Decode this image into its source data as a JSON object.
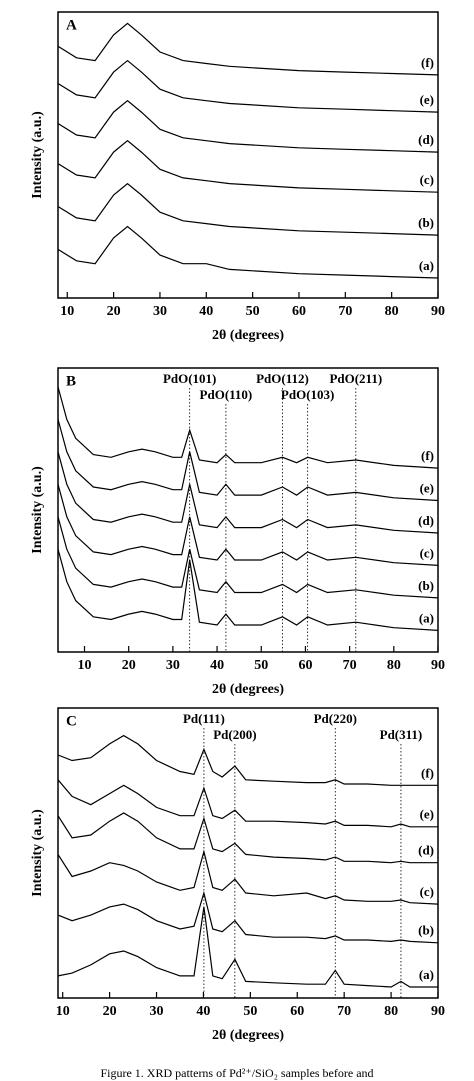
{
  "chart_data": [
    {
      "type": "line",
      "title": "A",
      "y_label": "Intensity (a.u.)",
      "x_label": "2θ (degrees)",
      "xlim": [
        8,
        90
      ],
      "ylim": [
        0,
        100
      ],
      "xticks": [
        10,
        20,
        30,
        40,
        50,
        60,
        70,
        80,
        90
      ],
      "x": [
        8,
        12,
        16,
        20,
        23,
        26,
        30,
        35,
        40,
        45,
        50,
        60,
        70,
        80,
        90
      ],
      "series": [
        {
          "name": "(a)",
          "color": "#000000",
          "values": [
            17,
            13,
            12,
            21,
            25,
            21,
            15,
            12,
            12,
            10,
            9.5,
            8.5,
            8,
            7.5,
            7
          ]
        },
        {
          "name": "(b)",
          "color": "#000000",
          "values": [
            32,
            28,
            27,
            36,
            40,
            36,
            30,
            27,
            26,
            25,
            24.5,
            23.5,
            23,
            22.5,
            22
          ]
        },
        {
          "name": "(c)",
          "color": "#000000",
          "values": [
            47,
            43,
            42,
            51,
            55,
            51,
            45,
            42,
            41,
            40,
            39.5,
            38.5,
            38,
            37.5,
            37
          ]
        },
        {
          "name": "(d)",
          "color": "#000000",
          "values": [
            61,
            57,
            56,
            65,
            69,
            65,
            59,
            56,
            55,
            54,
            53.5,
            52.5,
            52,
            51.5,
            51
          ]
        },
        {
          "name": "(e)",
          "color": "#000000",
          "values": [
            75,
            71,
            70,
            79,
            83,
            79,
            73,
            70,
            69,
            68,
            67.5,
            66.5,
            66,
            65.5,
            65
          ]
        },
        {
          "name": "(f)",
          "color": "#000000",
          "values": [
            88,
            84,
            83,
            92,
            96,
            92,
            86,
            83,
            82,
            81,
            80.5,
            79.5,
            79,
            78.5,
            78
          ]
        }
      ]
    },
    {
      "type": "line",
      "title": "B",
      "y_label": "Intensity (a.u.)",
      "x_label": "2θ (degrees)",
      "xlim": [
        4,
        90
      ],
      "ylim": [
        0,
        105
      ],
      "xticks": [
        10,
        20,
        30,
        40,
        50,
        60,
        70,
        80,
        90
      ],
      "x": [
        4,
        6,
        8,
        12,
        16,
        20,
        23,
        26,
        30,
        32,
        33.8,
        36,
        40,
        42,
        44,
        50,
        54.8,
        58,
        60.5,
        65,
        71.4,
        80,
        90
      ],
      "peaks": [
        {
          "label": "PdO(101)",
          "x": 33.8
        },
        {
          "label": "PdO(110)",
          "x": 42
        },
        {
          "label": "PdO(112)",
          "x": 54.8
        },
        {
          "label": "PdO(103)",
          "x": 60.5
        },
        {
          "label": "PdO(211)",
          "x": 71.4
        }
      ],
      "series": [
        {
          "name": "(a)",
          "color": "#000000",
          "values": [
            38,
            26,
            19,
            13,
            12,
            14,
            15,
            14,
            12,
            12,
            34,
            11,
            10,
            14,
            10,
            10,
            13,
            10,
            13,
            10,
            11,
            9,
            8
          ]
        },
        {
          "name": "(b)",
          "color": "#000000",
          "values": [
            50,
            38,
            31,
            25,
            24,
            26,
            27,
            26,
            24,
            24,
            38,
            23,
            22,
            26,
            22,
            22,
            25,
            22,
            25,
            22,
            23,
            21,
            20
          ]
        },
        {
          "name": "(c)",
          "color": "#000000",
          "values": [
            62,
            50,
            43,
            37,
            36,
            38,
            39,
            38,
            36,
            36,
            50,
            35,
            34,
            38,
            34,
            34,
            37,
            34,
            37,
            34,
            35,
            33,
            32
          ]
        },
        {
          "name": "(d)",
          "color": "#000000",
          "values": [
            74,
            62,
            55,
            49,
            48,
            50,
            51,
            50,
            48,
            48,
            62,
            47,
            46,
            50,
            46,
            46,
            49,
            46,
            49,
            46,
            47,
            45,
            44
          ]
        },
        {
          "name": "(e)",
          "color": "#000000",
          "values": [
            86,
            74,
            67,
            61,
            60,
            62,
            63,
            62,
            60,
            60,
            74,
            59,
            58,
            62,
            58,
            58,
            61,
            58,
            61,
            58,
            59,
            57,
            56
          ]
        },
        {
          "name": "(f)",
          "color": "#000000",
          "values": [
            98,
            86,
            79,
            73,
            72,
            74,
            75,
            74,
            72,
            72,
            82,
            71,
            70,
            73,
            70,
            70,
            72,
            70,
            72,
            70,
            71,
            69,
            68
          ]
        }
      ]
    },
    {
      "type": "line",
      "title": "C",
      "y_label": "Intensity (a.u.)",
      "x_label": "2θ (degrees)",
      "xlim": [
        9,
        90
      ],
      "ylim": [
        0,
        105
      ],
      "xticks": [
        10,
        20,
        30,
        40,
        50,
        60,
        70,
        80,
        90
      ],
      "x": [
        9,
        12,
        16,
        20,
        23,
        26,
        30,
        35,
        38,
        40.1,
        42,
        44,
        46.7,
        49,
        55,
        62,
        66,
        68.1,
        70,
        75,
        80,
        82.1,
        84,
        90
      ],
      "peaks": [
        {
          "label": "Pd(111)",
          "x": 40.1
        },
        {
          "label": "Pd(200)",
          "x": 46.7
        },
        {
          "label": "Pd(220)",
          "x": 68.1
        },
        {
          "label": "Pd(311)",
          "x": 82.1
        }
      ],
      "series": [
        {
          "name": "(a)",
          "color": "#000000",
          "values": [
            8,
            9,
            12,
            16,
            17,
            15,
            11,
            8,
            8,
            33,
            8,
            7,
            14,
            6,
            5.5,
            5,
            5,
            10,
            5,
            4.5,
            4,
            6,
            4,
            4
          ]
        },
        {
          "name": "(b)",
          "color": "#000000",
          "values": [
            30,
            28,
            30,
            33,
            34,
            32,
            28,
            25,
            26,
            38,
            25,
            24,
            28,
            23,
            22,
            22,
            21.5,
            22.5,
            21,
            21,
            20.5,
            21,
            20.5,
            20
          ]
        },
        {
          "name": "(c)",
          "color": "#000000",
          "values": [
            52,
            44,
            46,
            49,
            48,
            46,
            42,
            39,
            40,
            53,
            40,
            39,
            43,
            38,
            37,
            38,
            36,
            37,
            35.5,
            35,
            35,
            35.5,
            34.5,
            34
          ]
        },
        {
          "name": "(d)",
          "color": "#000000",
          "values": [
            66,
            58,
            59,
            64,
            67,
            64,
            58,
            54,
            54,
            65,
            54,
            53,
            56,
            52,
            51,
            50.5,
            50,
            51,
            49.5,
            49.5,
            49,
            49.5,
            49,
            49
          ]
        },
        {
          "name": "(e)",
          "color": "#000000",
          "values": [
            79,
            73,
            70,
            74,
            77,
            74,
            69,
            66,
            66,
            76,
            66,
            65,
            68,
            64,
            64,
            63.5,
            63,
            64,
            62.5,
            62.5,
            62,
            63,
            62,
            62
          ]
        },
        {
          "name": "(f)",
          "color": "#000000",
          "values": [
            88,
            86,
            87,
            92,
            95,
            92,
            86,
            82,
            81,
            90,
            82,
            80,
            84,
            79,
            78.5,
            78,
            78,
            79,
            77.5,
            77.5,
            77,
            77,
            77,
            77
          ]
        }
      ]
    }
  ],
  "caption": "Figure 1. XRD patterns of Pd²⁺/SiO₂ samples before and"
}
